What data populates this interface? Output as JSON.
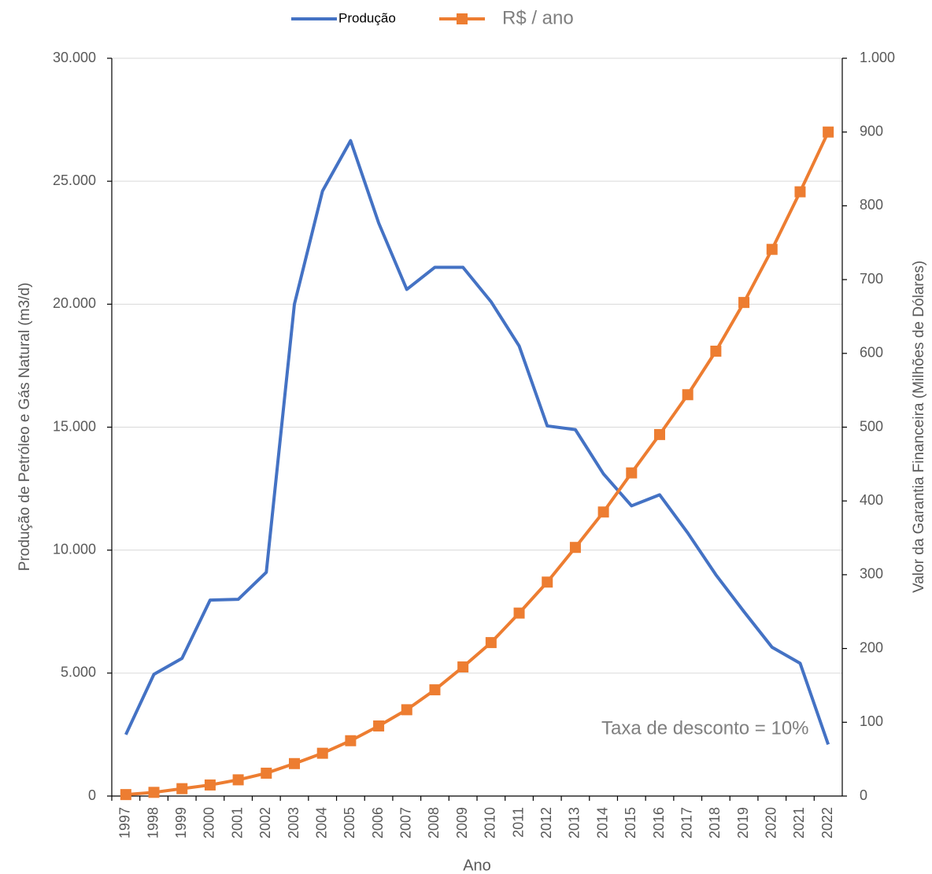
{
  "chart_data": {
    "type": "line",
    "categories": [
      "1997",
      "1998",
      "1999",
      "2000",
      "2001",
      "2002",
      "2003",
      "2004",
      "2005",
      "2006",
      "2007",
      "2008",
      "2009",
      "2010",
      "2011",
      "2012",
      "2013",
      "2014",
      "2015",
      "2016",
      "2017",
      "2018",
      "2019",
      "2020",
      "2021",
      "2022"
    ],
    "series": [
      {
        "name": "Produção",
        "color": "#4472c4",
        "axis": "y",
        "values": [
          2500,
          4950,
          5600,
          7970,
          8000,
          9100,
          20000,
          24600,
          26650,
          23300,
          20600,
          21500,
          21500,
          20100,
          18300,
          15050,
          14900,
          13100,
          11800,
          12250,
          10700,
          9000,
          7500,
          6050,
          5400,
          2100
        ]
      },
      {
        "name": "R$ / ano",
        "color": "#ed7d31",
        "axis": "y2",
        "marker": "square",
        "values": [
          2,
          5,
          10,
          15,
          22,
          31,
          44,
          58,
          75,
          95,
          117,
          144,
          175,
          208,
          248,
          290,
          337,
          385,
          438,
          490,
          544,
          603,
          669,
          741,
          819,
          900
        ]
      }
    ],
    "x_label": "Ano",
    "y_label": "Produção de Petróleo e Gás Natural (m3/d)",
    "y2_label": "Valor da Garantia Financeira (Milhões de Dólares)",
    "annotation": "Taxa de desconto = 10%",
    "ylim": [
      0,
      30000
    ],
    "yticks": [
      0,
      {
        "value": 5000,
        "label": "5.000"
      },
      {
        "value": 10000,
        "label": "10.000"
      },
      {
        "value": 15000,
        "label": "15.000"
      },
      {
        "value": 20000,
        "label": "20.000"
      },
      {
        "value": 25000,
        "label": "25.000"
      },
      {
        "value": 30000,
        "label": "30.000"
      }
    ],
    "y2lim": [
      0,
      1000
    ],
    "y2ticks": [
      0,
      100,
      200,
      300,
      400,
      500,
      600,
      700,
      800,
      900,
      {
        "value": 1000,
        "label": "1.000"
      }
    ],
    "grid": true,
    "legend": "top"
  }
}
